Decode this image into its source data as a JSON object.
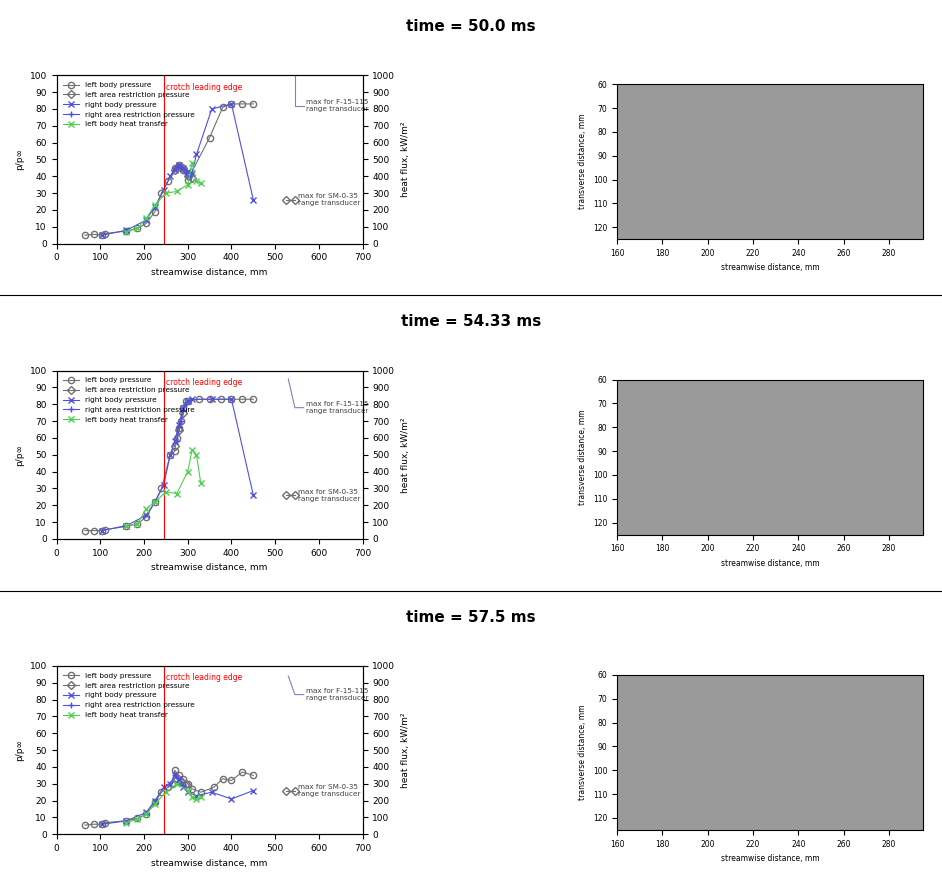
{
  "chart_data": [
    {
      "type": "line",
      "title": "time = 50.0 ms",
      "xlabel": "streamwise distance, mm",
      "ylabel": "p/p∞",
      "y2label": "heat flux, kW/m²",
      "xlim": [
        0,
        700
      ],
      "xticks": [
        0,
        100,
        200,
        300,
        400,
        500,
        600,
        700
      ],
      "ylim": [
        0,
        100
      ],
      "yticks": [
        0,
        10,
        20,
        30,
        40,
        50,
        60,
        70,
        80,
        90,
        100
      ],
      "y2lim": [
        0,
        1000
      ],
      "y2ticks": [
        0,
        100,
        200,
        300,
        400,
        500,
        600,
        700,
        800,
        900,
        1000
      ],
      "legend": "upper left",
      "series": [
        {
          "name": "left body pressure",
          "color": "#707070",
          "marker": "circle",
          "x": [
            65,
            85,
            105,
            110,
            160,
            185,
            205,
            225,
            240,
            255,
            270,
            280,
            290,
            300,
            350,
            380,
            400,
            425,
            450
          ],
          "values": [
            5,
            5.5,
            5,
            6,
            7.5,
            9,
            12,
            19,
            30,
            37,
            45,
            47,
            44,
            38,
            63,
            81,
            83,
            83,
            83
          ]
        },
        {
          "name": "left area restriction pressure",
          "color": "#707070",
          "marker": "diamond",
          "x": [
            270,
            280,
            290,
            300,
            310
          ],
          "values": [
            44,
            46,
            45,
            40,
            39
          ]
        },
        {
          "name": "right body pressure",
          "color": "#5050e0",
          "marker": "x",
          "x": [
            105,
            160,
            205,
            225,
            245,
            260,
            270,
            280,
            290,
            300,
            310,
            320,
            355,
            400,
            450
          ],
          "values": [
            5,
            8,
            14,
            22,
            32,
            40,
            44,
            47,
            45,
            43,
            42,
            53,
            80,
            83,
            26
          ]
        },
        {
          "name": "right area restriction pressure",
          "color": "#5050e0",
          "marker": "plus",
          "x": [
            275,
            285,
            295,
            305
          ],
          "values": [
            46,
            45,
            42,
            40
          ]
        },
        {
          "name": "left body heat transfer",
          "color": "#50d050",
          "marker": "x",
          "axis": "y2",
          "x": [
            160,
            185,
            205,
            225,
            250,
            275,
            300,
            310,
            320,
            330
          ],
          "values": [
            70,
            90,
            150,
            230,
            300,
            310,
            350,
            480,
            370,
            360
          ]
        }
      ],
      "vline": {
        "x": 245,
        "label": "crotch leading edge",
        "color": "#ff0000"
      },
      "annotations": [
        {
          "text": "max for F-15-115\nrange transducer",
          "x": [
            545,
            545,
            565
          ],
          "y": [
            100,
            82,
            82
          ],
          "color": "#8080c0",
          "marker": "none"
        },
        {
          "text": "max for SM-0-35\nrange transducer",
          "x": [
            525,
            545
          ],
          "y": [
            26,
            26
          ],
          "color": "#707070",
          "marker": "diamond"
        }
      ]
    },
    {
      "type": "image",
      "xlabel": "streamwise distance, mm",
      "ylabel": "transverse distance, mm",
      "xlim": [
        160,
        295
      ],
      "xticks": [
        160,
        180,
        200,
        220,
        240,
        260,
        280
      ],
      "ylim": [
        125,
        60
      ],
      "yticks": [
        60,
        70,
        80,
        90,
        100,
        110,
        120
      ],
      "color": "#9a9a9a"
    },
    {
      "type": "line",
      "title": "time = 54.33 ms",
      "xlabel": "streamwise distance, mm",
      "ylabel": "p/p∞",
      "y2label": "heat flux, kW/m²",
      "xlim": [
        0,
        700
      ],
      "xticks": [
        0,
        100,
        200,
        300,
        400,
        500,
        600,
        700
      ],
      "ylim": [
        0,
        100
      ],
      "yticks": [
        0,
        10,
        20,
        30,
        40,
        50,
        60,
        70,
        80,
        90,
        100
      ],
      "y2lim": [
        0,
        1000
      ],
      "y2ticks": [
        0,
        100,
        200,
        300,
        400,
        500,
        600,
        700,
        800,
        900,
        1000
      ],
      "legend": "upper left",
      "series": [
        {
          "name": "left body pressure",
          "color": "#707070",
          "marker": "circle",
          "x": [
            65,
            85,
            105,
            110,
            160,
            185,
            205,
            225,
            240,
            260,
            270,
            275,
            280,
            285,
            290,
            295,
            300,
            325,
            350,
            375,
            400,
            425,
            450
          ],
          "values": [
            5,
            5,
            5,
            5.5,
            7.5,
            9,
            13,
            22,
            30,
            50,
            52,
            60,
            66,
            70,
            78,
            82,
            82,
            83,
            83,
            83,
            83,
            83,
            83
          ]
        },
        {
          "name": "left area restriction pressure",
          "color": "#707070",
          "marker": "diamond",
          "x": [
            270,
            280,
            290
          ],
          "values": [
            55,
            65,
            75
          ]
        },
        {
          "name": "right body pressure",
          "color": "#5050e0",
          "marker": "x",
          "x": [
            105,
            160,
            205,
            225,
            245,
            260,
            270,
            280,
            290,
            300,
            310,
            355,
            400,
            450
          ],
          "values": [
            5,
            8,
            14,
            22,
            32,
            50,
            58,
            68,
            78,
            82,
            83,
            83,
            83,
            26
          ]
        },
        {
          "name": "right area restriction pressure",
          "color": "#5050e0",
          "marker": "plus",
          "x": [
            275,
            285,
            295
          ],
          "values": [
            58,
            70,
            80
          ]
        },
        {
          "name": "left body heat transfer",
          "color": "#50d050",
          "marker": "x",
          "axis": "y2",
          "x": [
            160,
            185,
            205,
            225,
            250,
            275,
            300,
            310,
            320,
            330
          ],
          "values": [
            80,
            90,
            180,
            220,
            280,
            270,
            400,
            530,
            500,
            330
          ]
        }
      ],
      "vline": {
        "x": 245,
        "label": "crotch leading edge",
        "color": "#ff0000"
      },
      "annotations": [
        {
          "text": "max for F-15-115\nrange transducer",
          "x": [
            530,
            545,
            565
          ],
          "y": [
            95,
            78,
            78
          ],
          "color": "#8080c0",
          "marker": "none"
        },
        {
          "text": "max for SM-0-35\nrange transducer",
          "x": [
            525,
            545
          ],
          "y": [
            26,
            26
          ],
          "color": "#707070",
          "marker": "diamond"
        }
      ]
    },
    {
      "type": "image",
      "xlabel": "streamwise distance, mm",
      "ylabel": "transverse distance, mm",
      "xlim": [
        160,
        295
      ],
      "xticks": [
        160,
        180,
        200,
        220,
        240,
        260,
        280
      ],
      "ylim": [
        125,
        60
      ],
      "yticks": [
        60,
        70,
        80,
        90,
        100,
        110,
        120
      ],
      "color": "#9a9a9a"
    },
    {
      "type": "line",
      "title": "time = 57.5 ms",
      "xlabel": "streamwise distance, mm",
      "ylabel": "p/p∞",
      "y2label": "heat flux, kW/m²",
      "xlim": [
        0,
        700
      ],
      "xticks": [
        0,
        100,
        200,
        300,
        400,
        500,
        600,
        700
      ],
      "ylim": [
        0,
        100
      ],
      "yticks": [
        0,
        10,
        20,
        30,
        40,
        50,
        60,
        70,
        80,
        90,
        100
      ],
      "y2lim": [
        0,
        1000
      ],
      "y2ticks": [
        0,
        100,
        200,
        300,
        400,
        500,
        600,
        700,
        800,
        900,
        1000
      ],
      "legend": "upper left",
      "series": [
        {
          "name": "left body pressure",
          "color": "#707070",
          "marker": "circle",
          "x": [
            65,
            85,
            105,
            110,
            160,
            185,
            205,
            225,
            240,
            255,
            265,
            270,
            280,
            290,
            300,
            310,
            330,
            360,
            380,
            400,
            425,
            450
          ],
          "values": [
            5.5,
            6,
            6,
            7,
            8,
            9.5,
            12,
            19,
            25,
            28,
            30,
            38,
            35,
            33,
            30,
            27,
            25,
            28,
            33,
            32,
            37,
            35
          ]
        },
        {
          "name": "left area restriction pressure",
          "color": "#707070",
          "marker": "diamond",
          "x": [
            275,
            285,
            295
          ],
          "values": [
            33,
            31,
            30
          ]
        },
        {
          "name": "right body pressure",
          "color": "#5050e0",
          "marker": "x",
          "x": [
            105,
            160,
            205,
            225,
            245,
            260,
            270,
            280,
            290,
            300,
            320,
            355,
            400,
            450
          ],
          "values": [
            6,
            8,
            13,
            20,
            28,
            30,
            35,
            33,
            28,
            25,
            23,
            25,
            21,
            26
          ]
        },
        {
          "name": "right area restriction pressure",
          "color": "#5050e0",
          "marker": "plus",
          "x": [
            270,
            280,
            290
          ],
          "values": [
            35,
            31,
            29
          ]
        },
        {
          "name": "left body heat transfer",
          "color": "#50d050",
          "marker": "x",
          "axis": "y2",
          "x": [
            160,
            185,
            205,
            225,
            250,
            275,
            300,
            310,
            320,
            330
          ],
          "values": [
            70,
            90,
            120,
            180,
            250,
            300,
            260,
            220,
            210,
            220
          ]
        }
      ],
      "vline": {
        "x": 245,
        "label": "crotch leading edge",
        "color": "#ff0000"
      },
      "annotations": [
        {
          "text": "max for F-15-115\nrange transducer",
          "x": [
            530,
            545,
            565
          ],
          "y": [
            94,
            83,
            83
          ],
          "color": "#8080c0",
          "marker": "none"
        },
        {
          "text": "max for SM-0-35\nrange transducer",
          "x": [
            525,
            545
          ],
          "y": [
            26,
            26
          ],
          "color": "#707070",
          "marker": "diamond"
        }
      ]
    },
    {
      "type": "image",
      "xlabel": "streamwise distance, mm",
      "ylabel": "transverse distance, mm",
      "xlim": [
        160,
        295
      ],
      "xticks": [
        160,
        180,
        200,
        220,
        240,
        260,
        280
      ],
      "ylim": [
        125,
        60
      ],
      "yticks": [
        60,
        70,
        80,
        90,
        100,
        110,
        120
      ],
      "color": "#9a9a9a"
    }
  ]
}
